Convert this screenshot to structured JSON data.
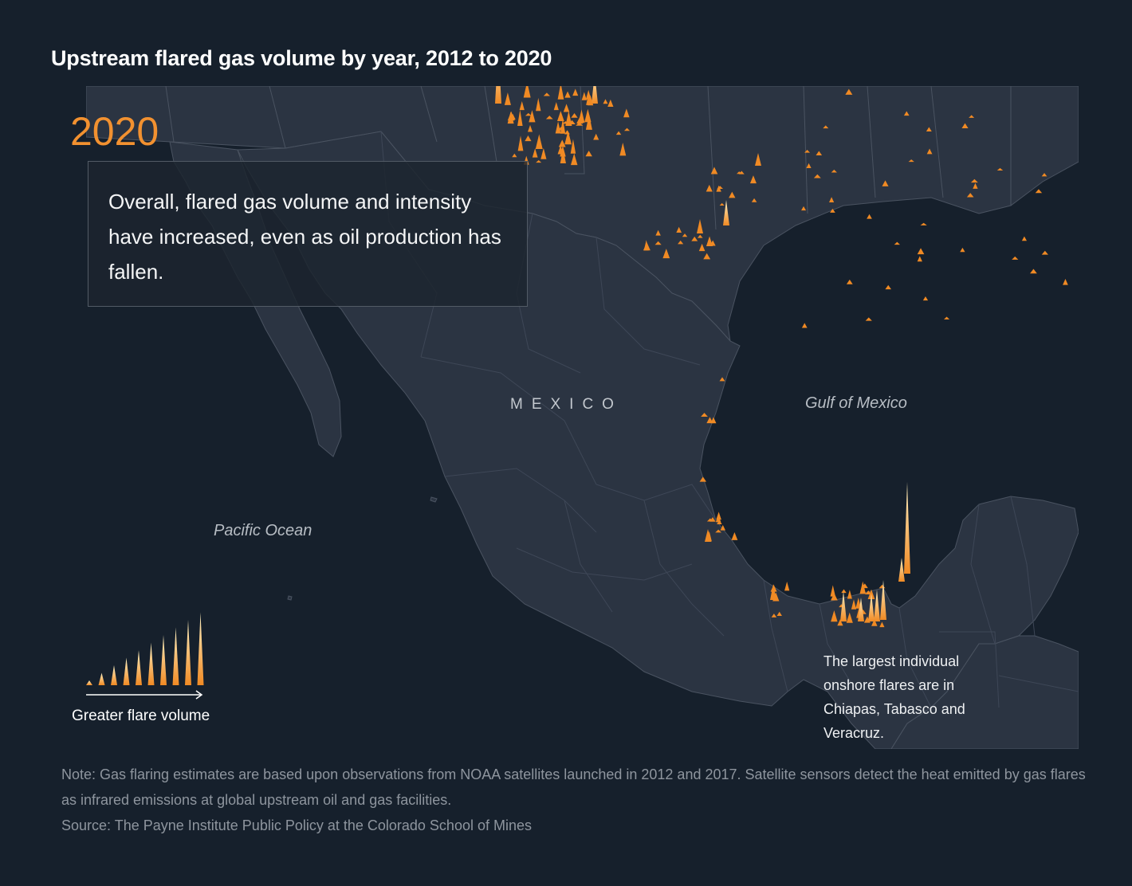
{
  "title": "Upstream flared gas volume by year, 2012 to 2020",
  "year": "2020",
  "callout": "Overall, flared gas volume and intensity have increased, even as oil production has fallen.",
  "labels": {
    "pacific": "Pacific Ocean",
    "gulf": "Gulf of Mexico",
    "mexico": "MEXICO"
  },
  "annotation": "The largest individual onshore flares are in Chiapas, Tabasco and Veracruz.",
  "legend": {
    "label": "Greater flare volume",
    "steps": 10
  },
  "note": "Note: Gas flaring estimates are based upon observations from NOAA satellites launched in 2012 and 2017. Satellite sensors detect the heat emitted by gas flares as infrared emissions at global upstream oil and gas facilities.",
  "source": "Source: The Payne Institute Public Policy at the Colorado School of Mines",
  "colors": {
    "background": "#16202c",
    "land": "#2b3442",
    "border": "#4a5361",
    "flare_low": "#f08a24",
    "flare_high": "#fff3c4",
    "year": "#f29130"
  }
}
